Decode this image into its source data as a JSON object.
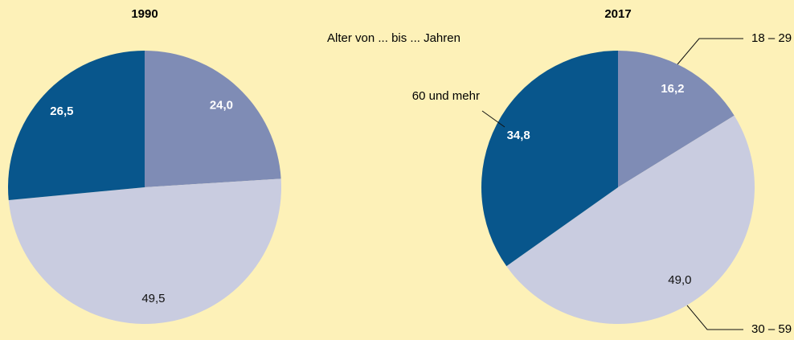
{
  "caption": "Alter von ... bis ... Jahren",
  "chart_data": [
    {
      "type": "pie",
      "title": "1990",
      "values": [
        24.0,
        49.5,
        26.5
      ],
      "value_labels": [
        "24,0",
        "49,5",
        "26,5"
      ],
      "colors": [
        "#7f8cb5",
        "#c9cce0",
        "#08568c"
      ]
    },
    {
      "type": "pie",
      "title": "2017",
      "categories": [
        "18 – 29",
        "30 – 59",
        "60 und mehr"
      ],
      "values": [
        16.2,
        49.0,
        34.8
      ],
      "value_labels": [
        "16,2",
        "49,0",
        "34,8"
      ],
      "colors": [
        "#7f8cb5",
        "#c9cce0",
        "#08568c"
      ]
    }
  ]
}
